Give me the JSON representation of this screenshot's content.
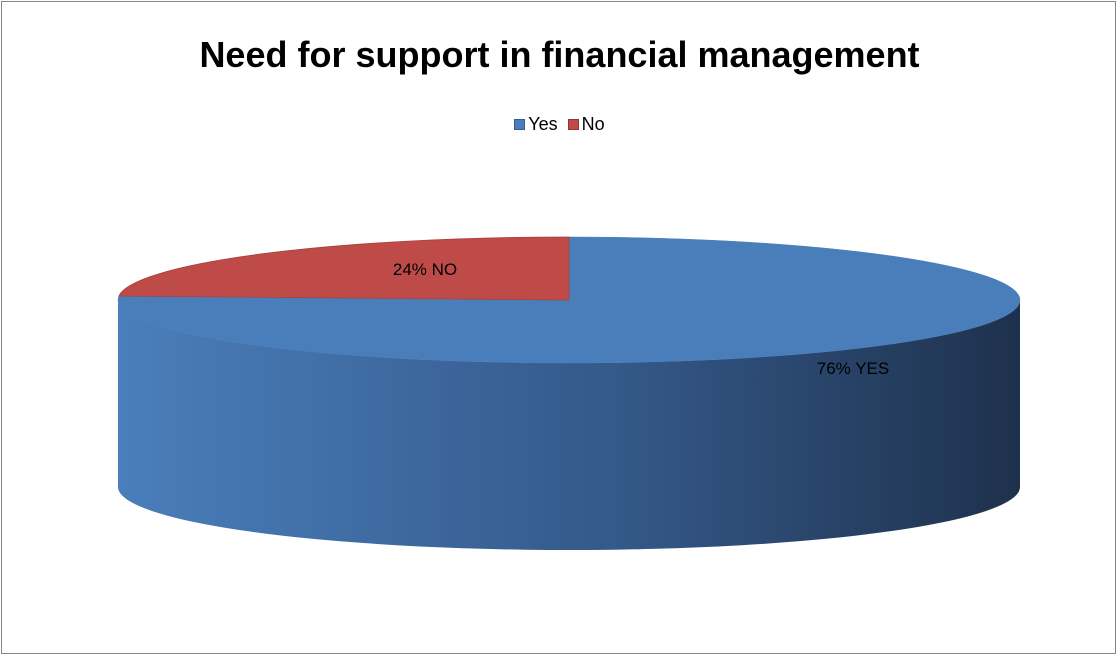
{
  "chart_data": {
    "type": "pie",
    "style": "3d",
    "title": "Need for support in financial management",
    "legend_position": "top",
    "categories": [
      "Yes",
      "No"
    ],
    "values": [
      76,
      24
    ],
    "unit": "%",
    "colors": [
      "#4a7ebb",
      "#be4b48"
    ],
    "data_labels": [
      "76% YES",
      "24% NO"
    ]
  }
}
